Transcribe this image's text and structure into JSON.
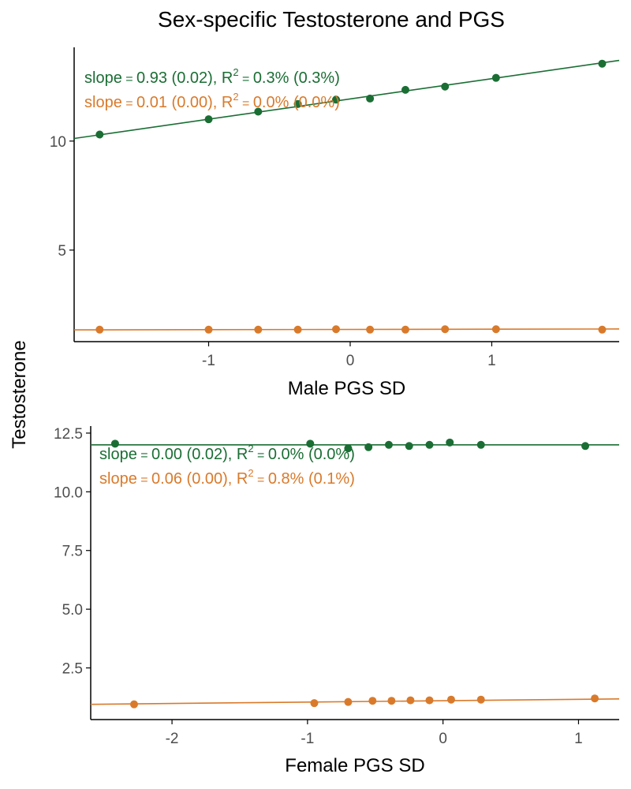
{
  "title": "Sex-specific Testosterone and PGS",
  "ylabel": "Testosterone",
  "colors": {
    "male": "#1a6e34",
    "female": "#d97a2b",
    "axis": "#000000",
    "tick_text": "#4d4d4d"
  },
  "chart_data": [
    {
      "type": "scatter",
      "xlabel": "Male PGS SD",
      "xlim": [
        -1.95,
        1.9
      ],
      "ylim": [
        0.8,
        14.3
      ],
      "xticks": [
        -1,
        0,
        1
      ],
      "xtick_labels": [
        "-1",
        "0",
        "1"
      ],
      "yticks": [
        5,
        10
      ],
      "ytick_labels": [
        "5",
        "10"
      ],
      "series": [
        {
          "color_key": "male",
          "x": [
            -1.77,
            -1.0,
            -0.65,
            -0.37,
            -0.1,
            0.14,
            0.39,
            0.67,
            1.03,
            1.78
          ],
          "y": [
            10.3,
            11.0,
            11.35,
            11.7,
            11.9,
            11.95,
            12.35,
            12.5,
            12.9,
            13.55
          ],
          "fit": {
            "x": [
              -1.95,
              1.9
            ],
            "y": [
              10.12,
              13.7
            ]
          },
          "annotation": {
            "slope": "0.93 (0.02),",
            "r2": "0.3% (0.3%)"
          }
        },
        {
          "color_key": "female",
          "x": [
            -1.77,
            -1.0,
            -0.65,
            -0.37,
            -0.1,
            0.14,
            0.39,
            0.67,
            1.03,
            1.78
          ],
          "y": [
            1.35,
            1.35,
            1.35,
            1.35,
            1.37,
            1.35,
            1.35,
            1.37,
            1.37,
            1.35
          ],
          "fit": {
            "x": [
              -1.95,
              1.9
            ],
            "y": [
              1.34,
              1.38
            ]
          },
          "annotation": {
            "slope": "0.01 (0.00),",
            "r2": "0.0% (0.0%)"
          }
        }
      ]
    },
    {
      "type": "scatter",
      "xlabel": "Female PGS SD",
      "xlim": [
        -2.6,
        1.3
      ],
      "ylim": [
        0.3,
        12.8
      ],
      "xticks": [
        -2,
        -1,
        0,
        1
      ],
      "xtick_labels": [
        "-2",
        "-1",
        "0",
        "1"
      ],
      "yticks": [
        2.5,
        5.0,
        7.5,
        10.0,
        12.5
      ],
      "ytick_labels": [
        "2.5",
        "5.0",
        "7.5",
        "10.0",
        "12.5"
      ],
      "series": [
        {
          "color_key": "male",
          "x": [
            -2.42,
            -0.98,
            -0.7,
            -0.55,
            -0.4,
            -0.25,
            -0.1,
            0.05,
            0.28,
            1.05
          ],
          "y": [
            12.05,
            12.05,
            11.85,
            11.9,
            12.0,
            11.95,
            12.0,
            12.1,
            12.0,
            11.95
          ],
          "fit": {
            "x": [
              -2.6,
              1.3
            ],
            "y": [
              12.0,
              12.0
            ]
          },
          "annotation": {
            "slope": "0.00 (0.02),",
            "r2": "0.0% (0.0%)"
          }
        },
        {
          "color_key": "female",
          "x": [
            -2.28,
            -0.95,
            -0.7,
            -0.52,
            -0.38,
            -0.24,
            -0.1,
            0.06,
            0.28,
            1.12
          ],
          "y": [
            0.95,
            1.0,
            1.05,
            1.1,
            1.1,
            1.12,
            1.12,
            1.15,
            1.15,
            1.2
          ],
          "fit": {
            "x": [
              -2.6,
              1.3
            ],
            "y": [
              0.95,
              1.18
            ]
          },
          "annotation": {
            "slope": "0.06 (0.00),",
            "r2": "0.8% (0.1%)"
          }
        }
      ]
    }
  ]
}
